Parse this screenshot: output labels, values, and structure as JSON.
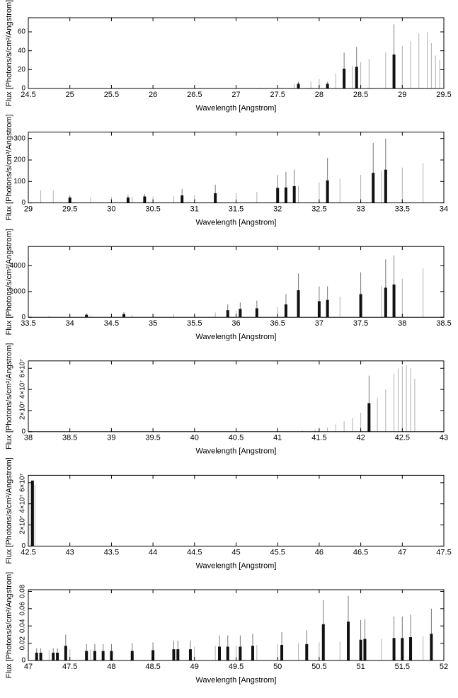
{
  "chart_data": [
    {
      "type": "bar",
      "xlabel": "Wavelength [Angstrom]",
      "ylabel": "Flux [Photons/s/cm²/Angstrom]",
      "xlim": [
        24.5,
        29.5
      ],
      "xticks": [
        24.5,
        25,
        25.5,
        26,
        26.5,
        27,
        27.5,
        28,
        28.5,
        29,
        29.5
      ],
      "ylim": [
        0,
        75
      ],
      "yticks": [
        0,
        20,
        40,
        60
      ],
      "series": [
        {
          "color": "#b0b0b0",
          "x": [
            27.3,
            27.5,
            27.7,
            27.9,
            28.0,
            28.2,
            28.4,
            28.5,
            28.6,
            28.8,
            29.0,
            29.1,
            29.2,
            29.3,
            29.35,
            29.4,
            29.45
          ],
          "values": [
            1,
            3,
            5,
            7,
            10,
            16,
            24,
            28,
            31,
            38,
            45,
            50,
            58,
            60,
            48,
            35,
            30
          ]
        },
        {
          "color": "#111111",
          "x": [
            27.75,
            28.1,
            28.3,
            28.45,
            28.9
          ],
          "values": [
            5,
            5,
            21,
            23,
            36
          ],
          "errors": [
            2,
            2,
            17,
            21,
            32
          ]
        }
      ]
    },
    {
      "type": "bar",
      "xlabel": "Wavelength [Angstrom]",
      "ylabel": "Flux [Photons/s/cm²/Angstrom]",
      "xlim": [
        29,
        34
      ],
      "xticks": [
        29,
        29.5,
        30,
        30.5,
        31,
        31.5,
        32,
        32.5,
        33,
        33.5,
        34
      ],
      "ylim": [
        0,
        330
      ],
      "yticks": [
        0,
        100,
        200,
        300
      ],
      "series": [
        {
          "color": "#b0b0b0",
          "x": [
            29.0,
            29.15,
            29.3,
            29.5,
            29.75,
            30.0,
            30.25,
            30.5,
            30.75,
            31.0,
            31.25,
            31.5,
            31.75,
            32.0,
            32.25,
            32.5,
            32.75,
            33.0,
            33.25,
            33.5,
            33.75,
            34.0
          ],
          "values": [
            55,
            58,
            60,
            30,
            28,
            28,
            29,
            30,
            32,
            35,
            40,
            45,
            52,
            65,
            80,
            95,
            112,
            130,
            148,
            165,
            185,
            210
          ]
        },
        {
          "color": "#111111",
          "x": [
            29.5,
            30.2,
            30.4,
            30.85,
            31.25,
            32.0,
            32.1,
            32.2,
            32.6,
            33.15,
            33.3
          ],
          "values": [
            25,
            25,
            30,
            35,
            45,
            70,
            72,
            78,
            105,
            140,
            155
          ],
          "errors": [
            10,
            12,
            12,
            30,
            40,
            60,
            73,
            77,
            105,
            140,
            145
          ]
        }
      ]
    },
    {
      "type": "bar",
      "xlabel": "Wavelength [Angstrom]",
      "ylabel": "Flux [Photons/s/cm²/Angstrom]",
      "xlim": [
        33.5,
        38.5
      ],
      "xticks": [
        33.5,
        34,
        34.5,
        35,
        35.5,
        36,
        36.5,
        37,
        37.5,
        38,
        38.5
      ],
      "ylim": [
        0,
        5500
      ],
      "yticks": [
        0,
        2000,
        4000
      ],
      "series": [
        {
          "color": "#b0b0b0",
          "x": [
            33.5,
            33.75,
            34.0,
            34.25,
            34.5,
            34.75,
            35.0,
            35.25,
            35.5,
            35.75,
            36.0,
            36.25,
            36.5,
            36.75,
            37.0,
            37.25,
            37.5,
            37.75,
            38.0,
            38.25,
            38.5
          ],
          "values": [
            100,
            120,
            130,
            140,
            150,
            170,
            200,
            240,
            300,
            380,
            500,
            620,
            800,
            1000,
            1300,
            1600,
            2000,
            2450,
            3000,
            3800,
            5000
          ]
        },
        {
          "color": "#111111",
          "x": [
            34.2,
            34.65,
            35.9,
            36.05,
            36.25,
            36.6,
            36.75,
            37.0,
            37.1,
            37.5,
            37.8,
            37.9
          ],
          "values": [
            200,
            250,
            550,
            650,
            700,
            1000,
            2100,
            1250,
            1350,
            1800,
            2300,
            2550
          ],
          "errors": [
            100,
            150,
            450,
            500,
            600,
            800,
            1300,
            1150,
            1050,
            1700,
            2200,
            2250
          ]
        }
      ]
    },
    {
      "type": "bar",
      "xlabel": "Wavelength [Angstrom]",
      "ylabel": "Flux [Photons/s/cm²/Angstrom]",
      "xlim": [
        38,
        43
      ],
      "xticks": [
        38,
        38.5,
        39,
        39.5,
        40,
        40.5,
        41,
        41.5,
        42,
        42.5,
        43
      ],
      "ylim": [
        0,
        67000000
      ],
      "yticks": [
        0,
        {
          "value": 20000000,
          "label": "2×10⁷"
        },
        {
          "value": 40000000,
          "label": "4×10⁷"
        },
        {
          "value": 60000000,
          "label": "6×10⁷"
        }
      ],
      "series": [
        {
          "color": "#b0b0b0",
          "x": [
            41.3,
            41.45,
            41.6,
            41.7,
            41.8,
            41.9,
            42.0,
            42.1,
            42.2,
            42.3,
            42.4,
            42.45,
            42.5,
            42.55,
            42.6,
            42.65
          ],
          "values": [
            1000000,
            2000000,
            4000000,
            7000000,
            10000000,
            13000000,
            18000000,
            25000000,
            32000000,
            40000000,
            55000000,
            60000000,
            62000000,
            63000000,
            60000000,
            50000000
          ]
        },
        {
          "color": "#111111",
          "x": [
            42.1
          ],
          "values": [
            27000000
          ],
          "errors": [
            26000000
          ]
        }
      ]
    },
    {
      "type": "bar",
      "xlabel": "Wavelength [Angstrom]",
      "ylabel": "Flux [Photons/s/cm²/Angstrom]",
      "xlim": [
        42.5,
        47.5
      ],
      "xticks": [
        42.5,
        43,
        43.5,
        44,
        44.5,
        45,
        45.5,
        46,
        46.5,
        47,
        47.5
      ],
      "ylim": [
        0,
        67000000
      ],
      "yticks": [
        0,
        {
          "value": 20000000,
          "label": "2×10⁷"
        },
        {
          "value": 40000000,
          "label": "4×10⁷"
        },
        {
          "value": 60000000,
          "label": "6×10⁷"
        }
      ],
      "series": [
        {
          "color": "#b0b0b0",
          "x": [
            42.52,
            42.55,
            42.58
          ],
          "values": [
            60000000,
            62000000,
            58000000
          ]
        },
        {
          "color": "#111111",
          "x": [
            42.55
          ],
          "values": [
            62000000
          ],
          "errors": [
            0
          ]
        }
      ]
    },
    {
      "type": "bar",
      "xlabel": "Wavelength [Angstrom]",
      "ylabel": "Flux [Photons/s/cm²/Angstrom]",
      "xlim": [
        47,
        52
      ],
      "xticks": [
        47,
        47.5,
        48,
        48.5,
        49,
        49.5,
        50,
        50.5,
        51,
        51.5,
        52
      ],
      "ylim": [
        0,
        0.082
      ],
      "yticks": [
        0,
        0.02,
        0.04,
        0.06,
        0.08
      ],
      "series": [
        {
          "color": "#b0b0b0",
          "x": [
            47.0,
            47.25,
            47.5,
            47.75,
            48.0,
            48.25,
            48.5,
            48.75,
            49.0,
            49.25,
            49.5,
            49.75,
            50.0,
            50.25,
            50.5,
            50.75,
            51.0,
            51.25,
            51.5,
            51.75,
            52.0
          ],
          "values": [
            0.012,
            0.012,
            0.013,
            0.013,
            0.014,
            0.014,
            0.015,
            0.015,
            0.016,
            0.017,
            0.017,
            0.018,
            0.019,
            0.02,
            0.021,
            0.022,
            0.024,
            0.025,
            0.027,
            0.028,
            0.03
          ]
        },
        {
          "color": "#111111",
          "x": [
            47.1,
            47.15,
            47.3,
            47.35,
            47.45,
            47.7,
            47.8,
            47.9,
            48.0,
            48.25,
            48.5,
            48.75,
            48.8,
            48.95,
            49.3,
            49.4,
            49.55,
            49.7,
            50.05,
            50.35,
            50.55,
            50.85,
            51.0,
            51.05,
            51.4,
            51.5,
            51.6,
            51.85
          ],
          "values": [
            0.009,
            0.009,
            0.009,
            0.009,
            0.017,
            0.011,
            0.011,
            0.011,
            0.011,
            0.011,
            0.012,
            0.013,
            0.013,
            0.013,
            0.016,
            0.016,
            0.016,
            0.017,
            0.018,
            0.019,
            0.042,
            0.045,
            0.024,
            0.025,
            0.026,
            0.026,
            0.027,
            0.031
          ],
          "errors": [
            0.005,
            0.005,
            0.005,
            0.005,
            0.013,
            0.008,
            0.008,
            0.008,
            0.008,
            0.009,
            0.009,
            0.01,
            0.01,
            0.01,
            0.013,
            0.013,
            0.013,
            0.014,
            0.015,
            0.016,
            0.028,
            0.03,
            0.023,
            0.023,
            0.025,
            0.025,
            0.026,
            0.029
          ]
        }
      ]
    }
  ]
}
